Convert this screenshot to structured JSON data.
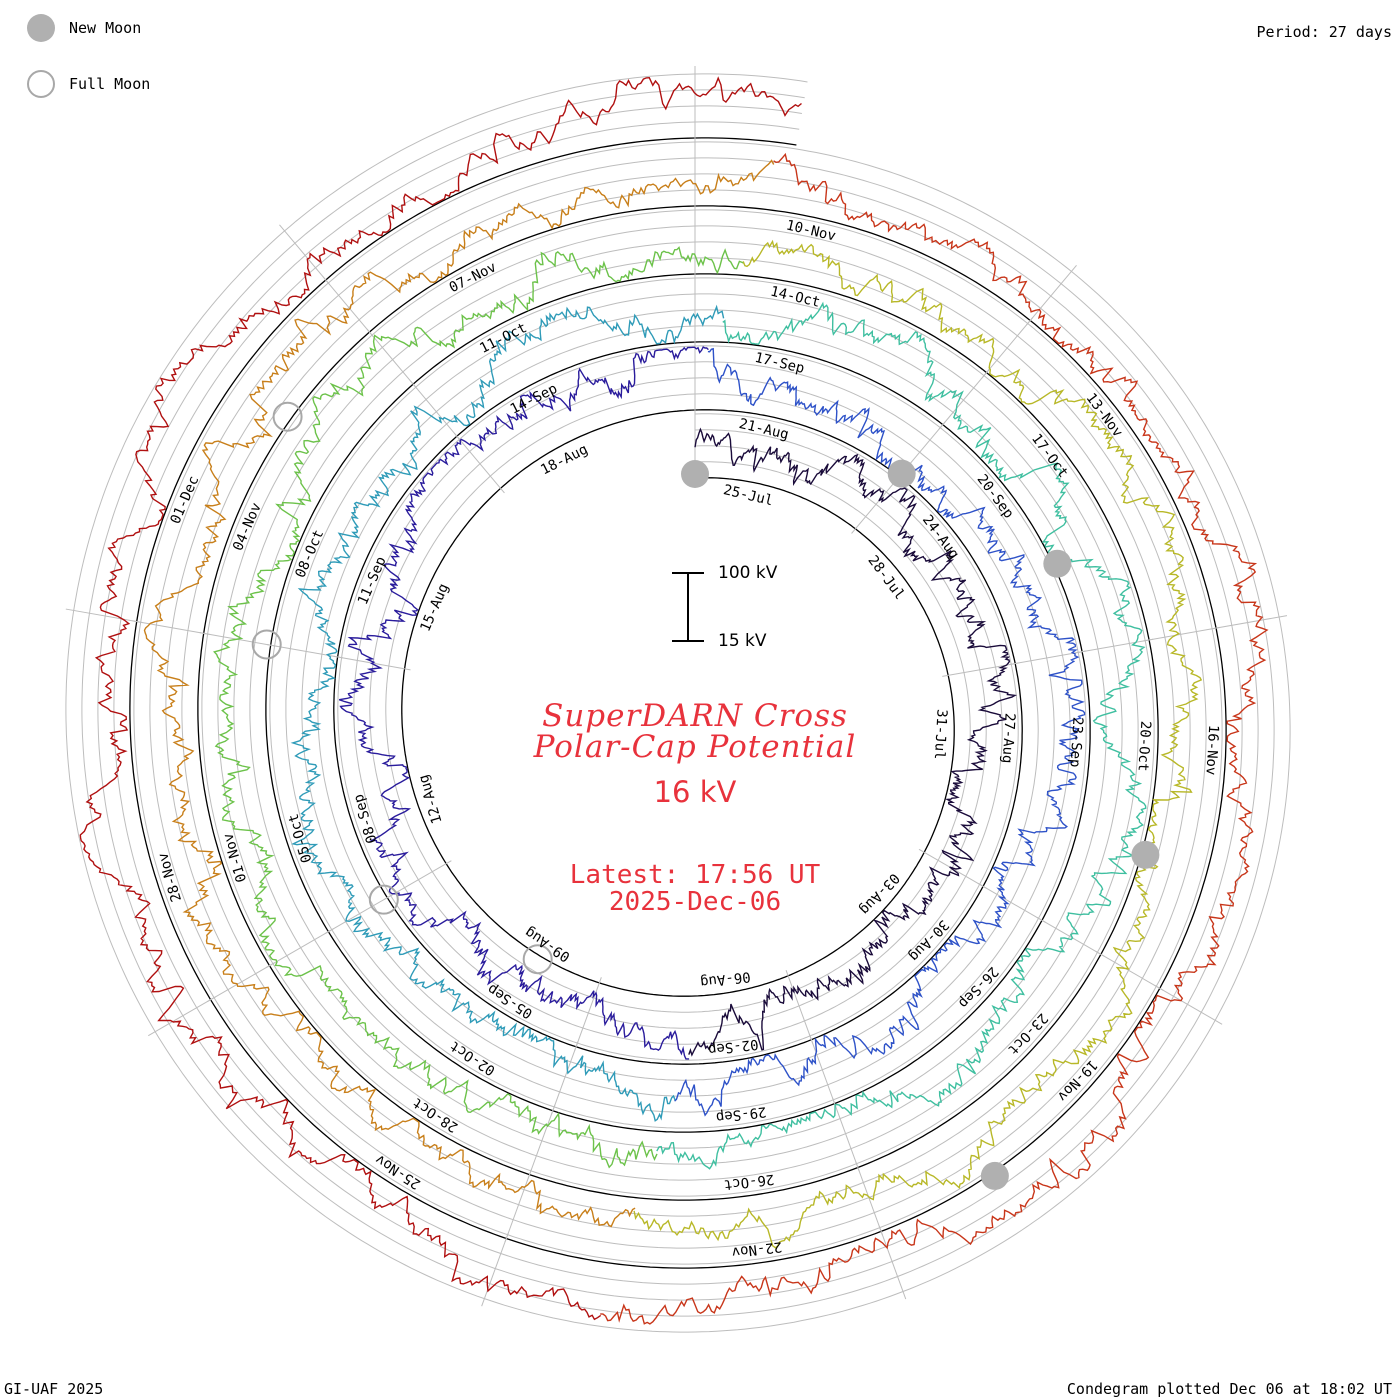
{
  "legend": {
    "new_moon_label": "New Moon",
    "full_moon_label": "Full Moon"
  },
  "period_label": "Period: 27 days",
  "footer_left": "GI-UAF 2025",
  "footer_right": "Condegram plotted Dec 06 at 18:02 UT",
  "title_line1": "SuperDARN Cross",
  "title_line2": "Polar-Cap Potential",
  "current_value": "16 kV",
  "latest_time": "Latest: 17:56 UT",
  "latest_date": "2025-Dec-06",
  "scale": {
    "top_label": "100 kV",
    "bottom_label": "15 kV"
  },
  "colors": {
    "title": "#e8323c",
    "moon": "#b0b0b0",
    "rings": [
      "#1a0b3a",
      "#2a1c9c",
      "#2e52c8",
      "#2f9bb8",
      "#3fbfa0",
      "#6cc24a",
      "#b8b828",
      "#c87f1a",
      "#c8361a",
      "#b01010"
    ]
  },
  "chart_data": {
    "type": "condegram-spiral",
    "title": "SuperDARN Cross Polar-Cap Potential",
    "period_days": 27,
    "start_date": "2025-07-24",
    "end_date": "2025-12-06",
    "ylim_kV": [
      15,
      100
    ],
    "latest_value_kV": 16,
    "date_labels": [
      "25-Jul",
      "28-Jul",
      "31-Jul",
      "03-Aug",
      "06-Aug",
      "09-Aug",
      "12-Aug",
      "15-Aug",
      "18-Aug",
      "21-Aug",
      "24-Aug",
      "27-Aug",
      "30-Aug",
      "02-Sep",
      "05-Sep",
      "08-Sep",
      "11-Sep",
      "14-Sep",
      "17-Sep",
      "20-Sep",
      "23-Sep",
      "26-Sep",
      "29-Sep",
      "02-Oct",
      "05-Oct",
      "08-Oct",
      "11-Oct",
      "14-Oct",
      "17-Oct",
      "20-Oct",
      "23-Oct",
      "26-Oct",
      "28-Oct",
      "01-Nov",
      "04-Nov",
      "07-Nov",
      "10-Nov",
      "13-Nov",
      "16-Nov",
      "19-Nov",
      "22-Nov",
      "25-Nov",
      "28-Nov",
      "01-Dec"
    ],
    "new_moons": [
      "2025-07-24",
      "2025-08-23",
      "2025-09-21",
      "2025-10-21",
      "2025-11-20"
    ],
    "full_moons": [
      "2025-08-09",
      "2025-09-07",
      "2025-10-07",
      "2025-11-05"
    ]
  }
}
